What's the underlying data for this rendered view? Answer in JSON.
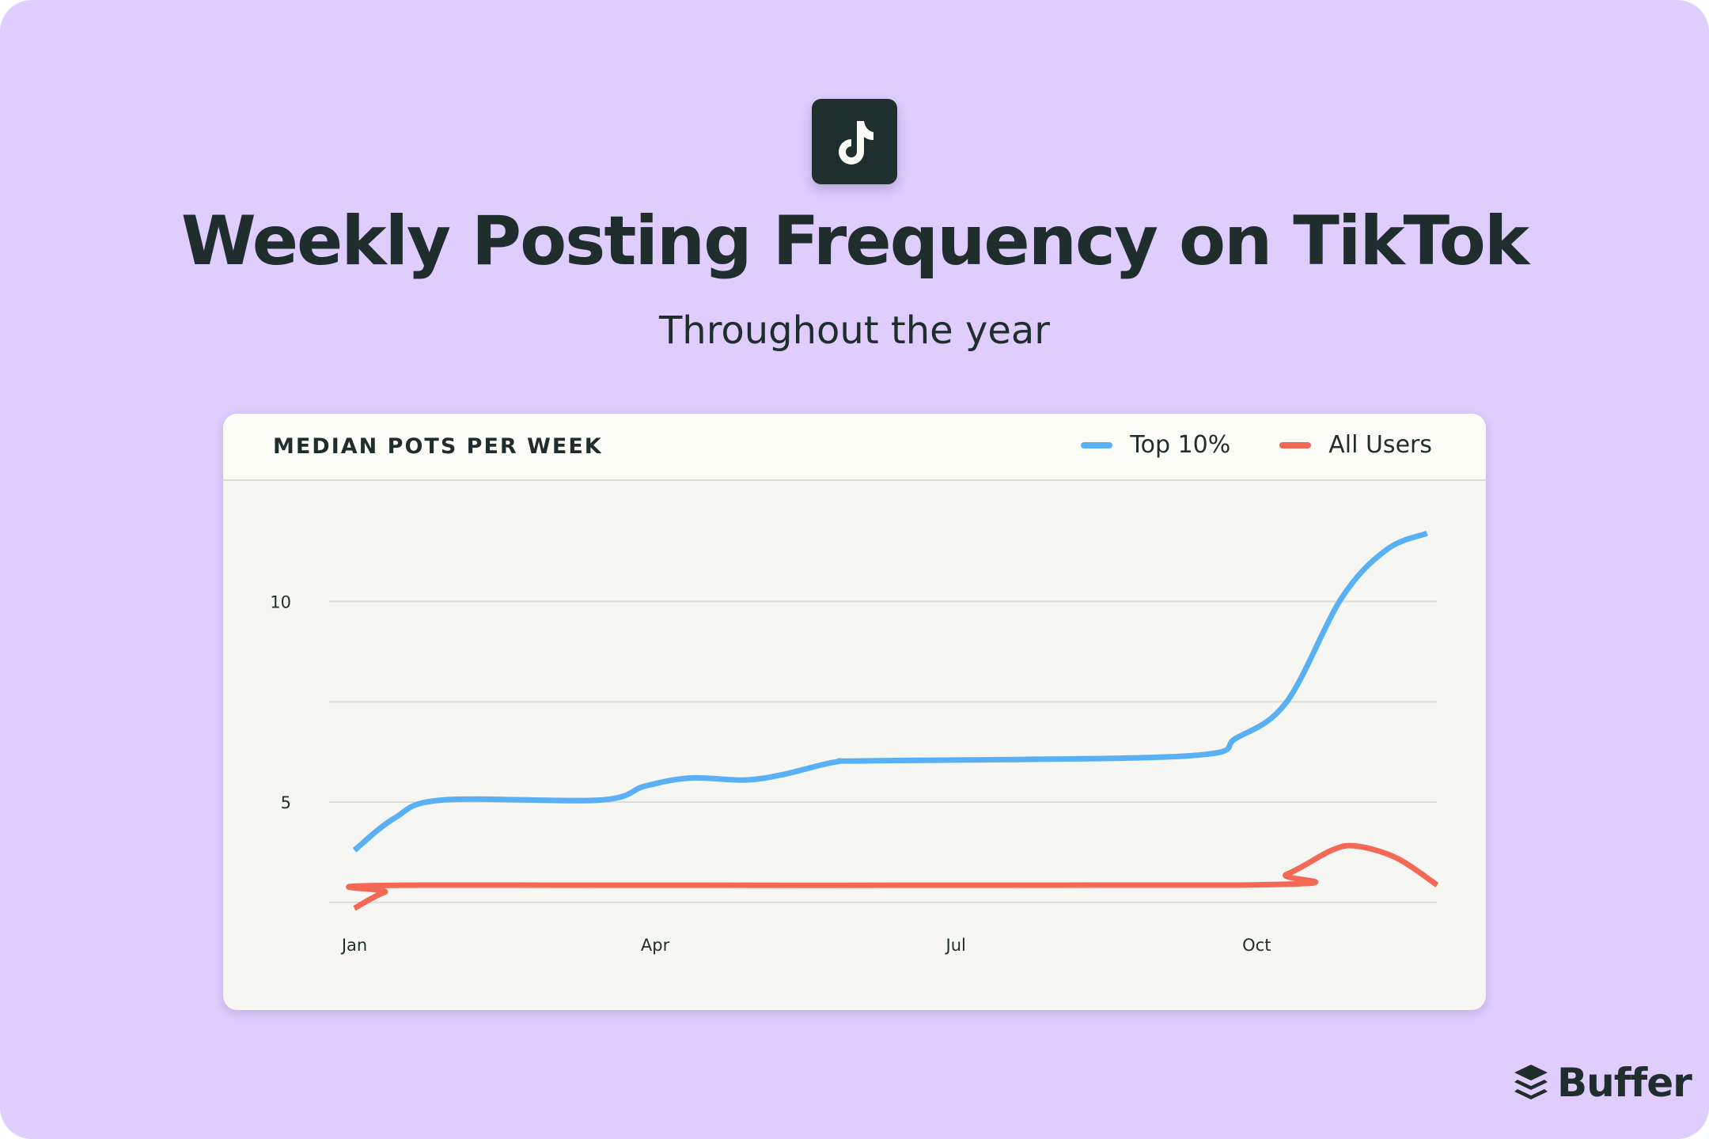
{
  "header": {
    "icon": "tiktok-icon",
    "title": "Weekly Posting Frequency on TikTok",
    "subtitle": "Throughout the year"
  },
  "branding": {
    "logo": "buffer-logo",
    "name": "Buffer"
  },
  "colors": {
    "background": "#dfcdfd",
    "top10": "#5ab0f5",
    "all_users": "#f46856",
    "text": "#1f2d2d"
  },
  "chart_data": {
    "type": "line",
    "title": "MEDIAN POTS PER WEEK",
    "x_unit": "month (0 = Jan)",
    "x_ticks": [
      {
        "value": 0,
        "label": "Jan"
      },
      {
        "value": 3,
        "label": "Apr"
      },
      {
        "value": 6,
        "label": "Jul"
      },
      {
        "value": 9,
        "label": "Oct"
      }
    ],
    "y_ticks": [
      {
        "value": 10,
        "label": "10"
      },
      {
        "value": 5,
        "label": "5"
      }
    ],
    "y_gridlines": [
      2.5,
      5,
      7.5,
      10
    ],
    "grid": true,
    "legend": "top-right",
    "series": [
      {
        "name": "Top 10%",
        "color": "#5ab0f5",
        "points": [
          [
            0,
            3.8
          ],
          [
            0.4,
            4.6
          ],
          [
            0.87,
            5.05
          ],
          [
            2.45,
            5.05
          ],
          [
            2.9,
            5.4
          ],
          [
            3.35,
            5.6
          ],
          [
            3.9,
            5.55
          ],
          [
            4.3,
            5.7
          ],
          [
            4.8,
            6.0
          ],
          [
            5.2,
            6.03
          ],
          [
            8.3,
            6.15
          ],
          [
            8.8,
            6.6
          ],
          [
            9.3,
            7.5
          ],
          [
            9.85,
            10.1
          ],
          [
            10.3,
            11.3
          ],
          [
            10.7,
            11.7
          ]
        ]
      },
      {
        "name": "All Users",
        "color": "#f46856",
        "points": [
          [
            0,
            2.35
          ],
          [
            0.3,
            2.75
          ],
          [
            0.65,
            2.93
          ],
          [
            8.85,
            2.93
          ],
          [
            9.3,
            3.2
          ],
          [
            9.75,
            3.8
          ],
          [
            10.0,
            3.9
          ],
          [
            10.4,
            3.6
          ],
          [
            10.8,
            2.93
          ]
        ]
      }
    ]
  }
}
